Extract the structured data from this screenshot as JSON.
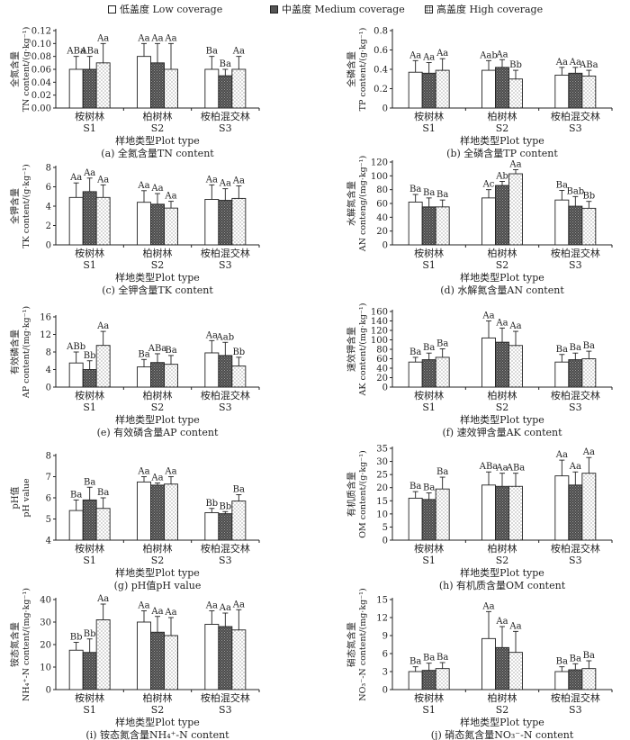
{
  "legend": [
    {
      "label": "低盖度 Low coverage",
      "pattern": "white"
    },
    {
      "label": "中盖度 Medium coverage",
      "pattern": "dark"
    },
    {
      "label": "高盖度 High coverage",
      "pattern": "dots"
    }
  ],
  "colors": {
    "low": "#ffffff",
    "medium": "#555555",
    "high": "#ffffff",
    "ink": "#222222"
  },
  "chart_data": [
    {
      "id": "a",
      "type": "bar",
      "ylabel_cn": "全氮含量",
      "ylabel_en": "TN content/(g·kg⁻¹)",
      "yticks": [
        "0.00",
        "0.02",
        "0.04",
        "0.06",
        "0.08",
        "0.10",
        "0.12"
      ],
      "ylim": [
        0,
        0.12
      ],
      "values": [
        [
          0.06,
          0.06,
          0.07
        ],
        [
          0.08,
          0.07,
          0.06
        ],
        [
          0.06,
          0.05,
          0.06
        ]
      ],
      "errors": [
        [
          0.02,
          0.02,
          0.03
        ],
        [
          0.02,
          0.03,
          0.04
        ],
        [
          0.02,
          0.01,
          0.02
        ]
      ],
      "letters": [
        [
          "ABa",
          "ABa",
          "Aa"
        ],
        [
          "Aa",
          "Aa",
          "Aa"
        ],
        [
          "Ba",
          "Ba",
          "Aa"
        ]
      ],
      "categories_cn": [
        "桉树林",
        "柏树林",
        "桉柏混交林"
      ],
      "categories_en": [
        "S1",
        "S2",
        "S3"
      ],
      "xlabel": "样地类型Plot type",
      "caption": "(a) 全氮含量TN content"
    },
    {
      "id": "b",
      "type": "bar",
      "ylabel_cn": "全磷含量",
      "ylabel_en": "TP content/(g·kg⁻¹)",
      "yticks": [
        "0",
        "0.2",
        "0.4",
        "0.6",
        "0.8"
      ],
      "ylim": [
        0,
        0.8
      ],
      "values": [
        [
          0.37,
          0.36,
          0.39
        ],
        [
          0.39,
          0.42,
          0.3
        ],
        [
          0.34,
          0.36,
          0.33
        ]
      ],
      "errors": [
        [
          0.12,
          0.11,
          0.12
        ],
        [
          0.1,
          0.08,
          0.09
        ],
        [
          0.08,
          0.06,
          0.06
        ]
      ],
      "letters": [
        [
          "Aa",
          "Aa",
          "Aa"
        ],
        [
          "Aab",
          "Aa",
          "Bb"
        ],
        [
          "Aa",
          "Aa",
          "ABa"
        ]
      ],
      "categories_cn": [
        "桉树林",
        "柏树林",
        "桉柏混交林"
      ],
      "categories_en": [
        "S1",
        "S2",
        "S3"
      ],
      "xlabel": "样地类型Plot type",
      "caption": "(b) 全磷含量TP content"
    },
    {
      "id": "c",
      "type": "bar",
      "ylabel_cn": "全钾含量",
      "ylabel_en": "TK content/(g·kg⁻¹)",
      "yticks": [
        "0",
        "2",
        "4",
        "6",
        "8"
      ],
      "ylim": [
        0,
        8
      ],
      "values": [
        [
          4.9,
          5.5,
          4.9
        ],
        [
          4.4,
          4.2,
          3.8
        ],
        [
          4.7,
          4.6,
          4.8
        ]
      ],
      "errors": [
        [
          1.5,
          1.4,
          1.3
        ],
        [
          1.2,
          1.1,
          0.7
        ],
        [
          1.5,
          1.2,
          1.3
        ]
      ],
      "letters": [
        [
          "Aa",
          "Aa",
          "Aa"
        ],
        [
          "Aa",
          "Aa",
          "Aa"
        ],
        [
          "Aa",
          "Aa",
          "Aa"
        ]
      ],
      "categories_cn": [
        "桉树林",
        "柏树林",
        "桉柏混交林"
      ],
      "categories_en": [
        "S1",
        "S2",
        "S3"
      ],
      "xlabel": "样地类型Plot type",
      "caption": "(c) 全钾含量TK content"
    },
    {
      "id": "d",
      "type": "bar",
      "ylabel_cn": "水解氮含量",
      "ylabel_en": "AN conteng/(mg·kg⁻¹)",
      "yticks": [
        "0",
        "20",
        "40",
        "60",
        "80",
        "100",
        "120"
      ],
      "ylim": [
        0,
        120
      ],
      "values": [
        [
          62,
          55,
          55
        ],
        [
          68,
          86,
          103
        ],
        [
          65,
          56,
          53
        ]
      ],
      "errors": [
        [
          11,
          13,
          10
        ],
        [
          12,
          6,
          6
        ],
        [
          14,
          14,
          10
        ]
      ],
      "letters": [
        [
          "Ba",
          "Ba",
          "Ba"
        ],
        [
          "Ac",
          "Ab",
          "Aa"
        ],
        [
          "Ba",
          "Bab",
          "Bb"
        ]
      ],
      "categories_cn": [
        "桉树林",
        "柏树林",
        "桉柏混交林"
      ],
      "categories_en": [
        "S1",
        "S2",
        "S3"
      ],
      "xlabel": "样地类型Plot type",
      "caption": "(d) 水解氮含量AN content"
    },
    {
      "id": "e",
      "type": "bar",
      "ylabel_cn": "有效磷含量",
      "ylabel_en": "AP content/(mg·kg⁻¹)",
      "yticks": [
        "0",
        "4",
        "8",
        "12",
        "16"
      ],
      "ylim": [
        0,
        16
      ],
      "values": [
        [
          5.5,
          4.0,
          9.5
        ],
        [
          4.6,
          5.6,
          5.2
        ],
        [
          7.8,
          7.2,
          4.8
        ]
      ],
      "errors": [
        [
          2.5,
          2.0,
          3.2
        ],
        [
          1.7,
          2.0,
          2.0
        ],
        [
          2.8,
          3.0,
          2.0
        ]
      ],
      "letters": [
        [
          "ABb",
          "Bb",
          "Aa"
        ],
        [
          "Ba",
          "ABa",
          "Ba"
        ],
        [
          "Aa",
          "Aab",
          "Bb"
        ]
      ],
      "categories_cn": [
        "桉树林",
        "柏树林",
        "桉柏混交林"
      ],
      "categories_en": [
        "S1",
        "S2",
        "S3"
      ],
      "xlabel": "样地类型Plot type",
      "caption": "(e) 有效磷含量AP content"
    },
    {
      "id": "f",
      "type": "bar",
      "ylabel_cn": "速效钾含量",
      "ylabel_en": "AK content/(mg·kg⁻¹)",
      "yticks": [
        "0",
        "20",
        "40",
        "60",
        "80",
        "100",
        "120",
        "140",
        "160"
      ],
      "ylim": [
        0,
        160
      ],
      "values": [
        [
          53,
          58,
          63
        ],
        [
          104,
          95,
          88
        ],
        [
          53,
          58,
          60
        ]
      ],
      "errors": [
        [
          10,
          14,
          18
        ],
        [
          36,
          30,
          30
        ],
        [
          16,
          14,
          16
        ]
      ],
      "letters": [
        [
          "Ba",
          "Ba",
          "Ba"
        ],
        [
          "Aa",
          "Aa",
          "Aa"
        ],
        [
          "Ba",
          "Ba",
          "Ba"
        ]
      ],
      "categories_cn": [
        "桉树林",
        "柏树林",
        "桉柏混交林"
      ],
      "categories_en": [
        "S1",
        "S2",
        "S3"
      ],
      "xlabel": "样地类型Plot type",
      "caption": "(f) 速效钾含量AK content"
    },
    {
      "id": "g",
      "type": "bar",
      "ylabel_cn": "pH值",
      "ylabel_en": "pH value",
      "yticks": [
        "4",
        "5",
        "6",
        "7",
        "8"
      ],
      "ylim": [
        4,
        8
      ],
      "values": [
        [
          5.4,
          5.9,
          5.5
        ],
        [
          6.75,
          6.6,
          6.65
        ],
        [
          5.3,
          5.25,
          5.85
        ]
      ],
      "errors": [
        [
          0.5,
          0.6,
          0.5
        ],
        [
          0.25,
          0.1,
          0.35
        ],
        [
          0.2,
          0.1,
          0.3
        ]
      ],
      "letters": [
        [
          "Ba",
          "Ba",
          "Ba"
        ],
        [
          "Aa",
          "Aa",
          "Aa"
        ],
        [
          "Bb",
          "Bb",
          "Ba"
        ]
      ],
      "categories_cn": [
        "桉树林",
        "柏树林",
        "桉柏混交林"
      ],
      "categories_en": [
        "S1",
        "S2",
        "S3"
      ],
      "xlabel": "样地类型Plot type",
      "caption": "(g) pH值pH value"
    },
    {
      "id": "h",
      "type": "bar",
      "ylabel_cn": "有机质含量",
      "ylabel_en": "OM content/(g·kg⁻¹)",
      "yticks": [
        "0",
        "5",
        "10",
        "15",
        "20",
        "25",
        "30",
        "35"
      ],
      "ylim": [
        0,
        35
      ],
      "values": [
        [
          16,
          15.5,
          19.5
        ],
        [
          21,
          20.5,
          20.5
        ],
        [
          24.5,
          21,
          25.5
        ]
      ],
      "errors": [
        [
          2.5,
          2.5,
          4.5
        ],
        [
          5,
          5,
          5
        ],
        [
          6,
          5,
          6
        ]
      ],
      "letters": [
        [
          "Ba",
          "Ba",
          "Ba"
        ],
        [
          "ABa",
          "Aa",
          "ABa"
        ],
        [
          "Aa",
          "Aa",
          "Aa"
        ]
      ],
      "categories_cn": [
        "桉树林",
        "柏树林",
        "桉柏混交林"
      ],
      "categories_en": [
        "S1",
        "S2",
        "S3"
      ],
      "xlabel": "样地类型Plot type",
      "caption": "(h) 有机质含量OM content"
    },
    {
      "id": "i",
      "type": "bar",
      "ylabel_cn": "铵态氮含量",
      "ylabel_en": "NH₄⁺-N content/(mg·kg⁻¹)",
      "yticks": [
        "0",
        "10",
        "20",
        "30",
        "40"
      ],
      "ylim": [
        0,
        40
      ],
      "values": [
        [
          17.5,
          16.5,
          31
        ],
        [
          30,
          25.5,
          24
        ],
        [
          29,
          28,
          26.5
        ]
      ],
      "errors": [
        [
          3.5,
          6,
          7
        ],
        [
          5,
          7,
          8
        ],
        [
          6,
          6,
          9
        ]
      ],
      "letters": [
        [
          "Bb",
          "Bb",
          "Aa"
        ],
        [
          "Aa",
          "Aa",
          "Aa"
        ],
        [
          "Aa",
          "Aa",
          "Aa"
        ]
      ],
      "categories_cn": [
        "桉树林",
        "柏树林",
        "桉柏混交林"
      ],
      "categories_en": [
        "S1",
        "S2",
        "S3"
      ],
      "xlabel": "样地类型Plot type",
      "caption": "(i) 铵态氮含量NH₄⁺-N content"
    },
    {
      "id": "j",
      "type": "bar",
      "ylabel_cn": "硝态氮含量",
      "ylabel_en": "NO₃⁻-N content/(mg·kg⁻¹)",
      "yticks": [
        "0",
        "3",
        "6",
        "9",
        "12",
        "15"
      ],
      "ylim": [
        0,
        15
      ],
      "values": [
        [
          3.0,
          3.2,
          3.5
        ],
        [
          8.5,
          7.0,
          6.2
        ],
        [
          3.0,
          3.3,
          3.5
        ]
      ],
      "errors": [
        [
          0.8,
          1.2,
          1.0
        ],
        [
          4.5,
          3.5,
          3.5
        ],
        [
          0.8,
          1.0,
          1.3
        ]
      ],
      "letters": [
        [
          "Ba",
          "Ba",
          "Ba"
        ],
        [
          "Aa",
          "Aa",
          "Aa"
        ],
        [
          "Ba",
          "Ba",
          "Ba"
        ]
      ],
      "categories_cn": [
        "桉树林",
        "柏树林",
        "桉柏混交林"
      ],
      "categories_en": [
        "S1",
        "S2",
        "S3"
      ],
      "xlabel": "样地类型Plot type",
      "caption": "(j) 硝态氮含量NO₃⁻-N content"
    }
  ]
}
